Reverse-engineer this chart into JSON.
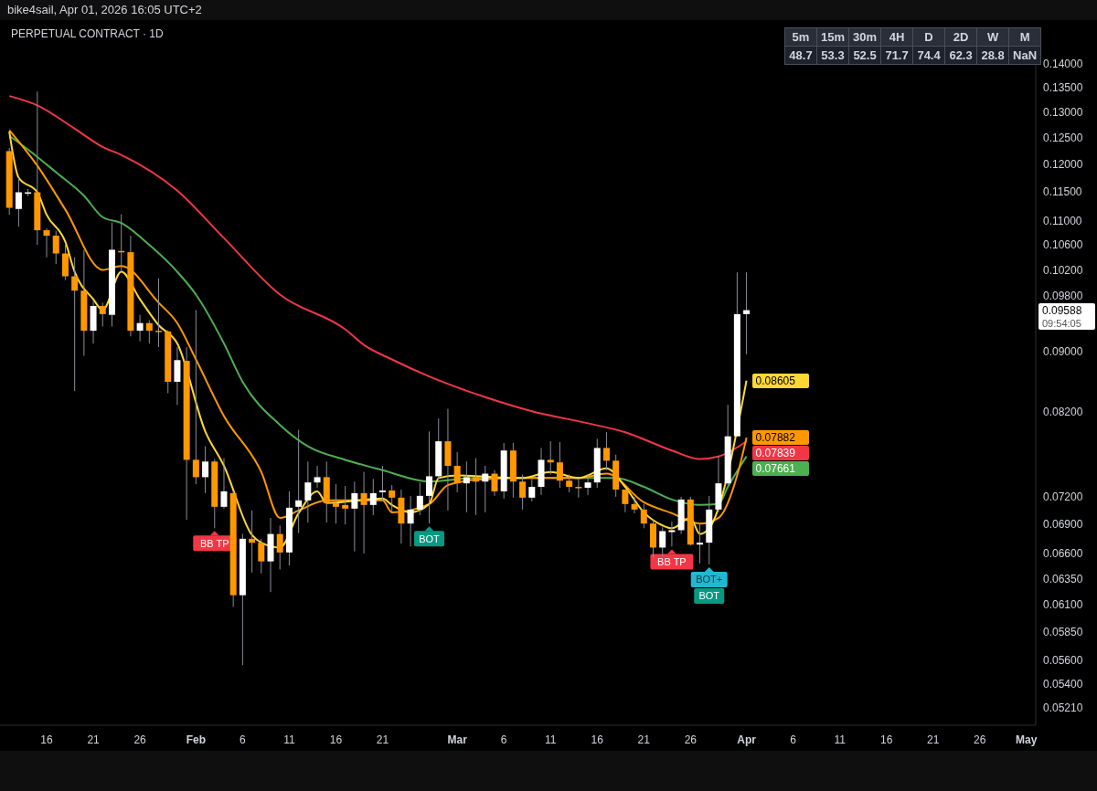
{
  "chart_data": [
    {
      "type": "candlestick",
      "title": "PERPETUAL CONTRACT · 1D",
      "subtitle": "bike4sail, Apr 01, 2026 16:05 UTC+2",
      "x": [
        "2026-01-12",
        "2026-01-13",
        "2026-01-14",
        "2026-01-15",
        "2026-01-16",
        "2026-01-17",
        "2026-01-18",
        "2026-01-19",
        "2026-01-20",
        "2026-01-21",
        "2026-01-22",
        "2026-01-23",
        "2026-01-24",
        "2026-01-25",
        "2026-01-26",
        "2026-01-27",
        "2026-01-28",
        "2026-01-29",
        "2026-01-30",
        "2026-01-31",
        "2026-02-01",
        "2026-02-02",
        "2026-02-03",
        "2026-02-04",
        "2026-02-05",
        "2026-02-06",
        "2026-02-07",
        "2026-02-08",
        "2026-02-09",
        "2026-02-10",
        "2026-02-11",
        "2026-02-12",
        "2026-02-13",
        "2026-02-14",
        "2026-02-15",
        "2026-02-16",
        "2026-02-17",
        "2026-02-18",
        "2026-02-19",
        "2026-02-20",
        "2026-02-21",
        "2026-02-22",
        "2026-02-23",
        "2026-02-24",
        "2026-02-25",
        "2026-02-26",
        "2026-02-27",
        "2026-02-28",
        "2026-03-01",
        "2026-03-02",
        "2026-03-03",
        "2026-03-04",
        "2026-03-05",
        "2026-03-06",
        "2026-03-07",
        "2026-03-08",
        "2026-03-09",
        "2026-03-10",
        "2026-03-11",
        "2026-03-12",
        "2026-03-13",
        "2026-03-14",
        "2026-03-15",
        "2026-03-16",
        "2026-03-17",
        "2026-03-18",
        "2026-03-19",
        "2026-03-20",
        "2026-03-21",
        "2026-03-22",
        "2026-03-23",
        "2026-03-24",
        "2026-03-25",
        "2026-03-26",
        "2026-03-27",
        "2026-03-28",
        "2026-03-29",
        "2026-03-30",
        "2026-03-31",
        "2026-04-01"
      ],
      "ohlc": [
        [
          0.1224,
          0.123,
          0.111,
          0.1122
        ],
        [
          0.112,
          0.1175,
          0.109,
          0.1149
        ],
        [
          0.1147,
          0.1155,
          0.1142,
          0.1149
        ],
        [
          0.1149,
          0.1341,
          0.106,
          0.1084
        ],
        [
          0.1084,
          0.1087,
          0.104,
          0.1075
        ],
        [
          0.1075,
          0.1083,
          0.1029,
          0.1046
        ],
        [
          0.1046,
          0.106,
          0.1004,
          0.101
        ],
        [
          0.101,
          0.104,
          0.0847,
          0.0988
        ],
        [
          0.0988,
          0.1052,
          0.0894,
          0.0929
        ],
        [
          0.0929,
          0.0972,
          0.0911,
          0.0965
        ],
        [
          0.0965,
          0.097,
          0.0935,
          0.0953
        ],
        [
          0.0952,
          0.1097,
          0.0935,
          0.1052
        ],
        [
          0.105,
          0.1111,
          0.1017,
          0.1048
        ],
        [
          0.1048,
          0.1075,
          0.0921,
          0.0929
        ],
        [
          0.0929,
          0.0952,
          0.0914,
          0.094
        ],
        [
          0.094,
          0.0944,
          0.0911,
          0.0929
        ],
        [
          0.0929,
          0.1007,
          0.0906,
          0.0928
        ],
        [
          0.0928,
          0.093,
          0.0844,
          0.0859
        ],
        [
          0.0859,
          0.0906,
          0.0829,
          0.0888
        ],
        [
          0.0887,
          0.0906,
          0.0695,
          0.0762
        ],
        [
          0.0762,
          0.0959,
          0.0734,
          0.0742
        ],
        [
          0.0742,
          0.0778,
          0.0724,
          0.076
        ],
        [
          0.076,
          0.0763,
          0.0686,
          0.0709
        ],
        [
          0.0709,
          0.0764,
          0.0707,
          0.0726
        ],
        [
          0.0724,
          0.0726,
          0.0608,
          0.0619
        ],
        [
          0.0619,
          0.068,
          0.0556,
          0.0675
        ],
        [
          0.0675,
          0.0705,
          0.0641,
          0.0671
        ],
        [
          0.0671,
          0.0675,
          0.064,
          0.0652
        ],
        [
          0.0652,
          0.0697,
          0.0622,
          0.068
        ],
        [
          0.068,
          0.0689,
          0.0644,
          0.0661
        ],
        [
          0.0661,
          0.0726,
          0.0648,
          0.0708
        ],
        [
          0.0709,
          0.0798,
          0.0681,
          0.0716
        ],
        [
          0.0716,
          0.076,
          0.0692,
          0.0736
        ],
        [
          0.0736,
          0.0755,
          0.073,
          0.0742
        ],
        [
          0.0742,
          0.076,
          0.0692,
          0.0713
        ],
        [
          0.0713,
          0.0734,
          0.0691,
          0.0709
        ],
        [
          0.0711,
          0.0732,
          0.069,
          0.0707
        ],
        [
          0.0707,
          0.0737,
          0.0662,
          0.0724
        ],
        [
          0.0724,
          0.0748,
          0.066,
          0.0711
        ],
        [
          0.0711,
          0.074,
          0.07,
          0.0724
        ],
        [
          0.0725,
          0.0755,
          0.0715,
          0.0727
        ],
        [
          0.0727,
          0.0733,
          0.0703,
          0.0719
        ],
        [
          0.0719,
          0.0728,
          0.067,
          0.0691
        ],
        [
          0.0691,
          0.0721,
          0.0667,
          0.0706
        ],
        [
          0.0706,
          0.0736,
          0.07,
          0.0721
        ],
        [
          0.0721,
          0.0796,
          0.0691,
          0.0743
        ],
        [
          0.0743,
          0.0812,
          0.074,
          0.0784
        ],
        [
          0.0784,
          0.0824,
          0.0705,
          0.0755
        ],
        [
          0.0755,
          0.0771,
          0.0725,
          0.0735
        ],
        [
          0.0735,
          0.076,
          0.0703,
          0.0742
        ],
        [
          0.0742,
          0.0764,
          0.07,
          0.0737
        ],
        [
          0.0737,
          0.0755,
          0.0703,
          0.0746
        ],
        [
          0.0746,
          0.075,
          0.0721,
          0.0726
        ],
        [
          0.0726,
          0.0782,
          0.0718,
          0.0773
        ],
        [
          0.0773,
          0.0782,
          0.0719,
          0.0737
        ],
        [
          0.0737,
          0.0745,
          0.0706,
          0.0719
        ],
        [
          0.0719,
          0.074,
          0.0715,
          0.0731
        ],
        [
          0.0731,
          0.0776,
          0.0722,
          0.0762
        ],
        [
          0.0762,
          0.0784,
          0.0745,
          0.0759
        ],
        [
          0.0759,
          0.0783,
          0.073,
          0.0738
        ],
        [
          0.0738,
          0.0745,
          0.0725,
          0.0731
        ],
        [
          0.0731,
          0.074,
          0.0719,
          0.073
        ],
        [
          0.073,
          0.0745,
          0.0722,
          0.0736
        ],
        [
          0.0736,
          0.0787,
          0.073,
          0.0776
        ],
        [
          0.0776,
          0.0795,
          0.075,
          0.0761
        ],
        [
          0.0761,
          0.0768,
          0.072,
          0.0728
        ],
        [
          0.0728,
          0.0728,
          0.0703,
          0.0712
        ],
        [
          0.0712,
          0.072,
          0.0702,
          0.0706
        ],
        [
          0.0706,
          0.0712,
          0.0686,
          0.0691
        ],
        [
          0.0691,
          0.0695,
          0.0656,
          0.0666
        ],
        [
          0.0666,
          0.0687,
          0.0657,
          0.0683
        ],
        [
          0.0682,
          0.0693,
          0.0667,
          0.0684
        ],
        [
          0.0684,
          0.072,
          0.068,
          0.0717
        ],
        [
          0.0717,
          0.072,
          0.0668,
          0.0669
        ],
        [
          0.0669,
          0.0691,
          0.065,
          0.0671
        ],
        [
          0.0671,
          0.0721,
          0.0649,
          0.0706
        ],
        [
          0.0706,
          0.0766,
          0.0703,
          0.0735
        ],
        [
          0.0735,
          0.0829,
          0.0733,
          0.079
        ],
        [
          0.079,
          0.1016,
          0.079,
          0.0953
        ],
        [
          0.0953,
          0.1016,
          0.0896,
          0.09588
        ]
      ],
      "colors": [
        "#ff9800",
        "#ffffff",
        "#ffffff",
        "#ff9800",
        "#ff9800",
        "#ff9800",
        "#ff9800",
        "#ff9800",
        "#ff9800",
        "#ffffff",
        "#ff9800",
        "#ffffff",
        "#ff9800",
        "#ff9800",
        "#ffffff",
        "#ff9800",
        "#ff9800",
        "#ff9800",
        "#ffffff",
        "#ff9800",
        "#ff9800",
        "#ffffff",
        "#ff9800",
        "#ffffff",
        "#ff9800",
        "#ffffff",
        "#ff9800",
        "#ff9800",
        "#ffffff",
        "#ff9800",
        "#ffffff",
        "#ffffff",
        "#ffffff",
        "#ffffff",
        "#ff9800",
        "#ff9800",
        "#ff9800",
        "#ffffff",
        "#ff9800",
        "#ffffff",
        "#ffffff",
        "#ff9800",
        "#ff9800",
        "#ffffff",
        "#ffffff",
        "#ffffff",
        "#ffffff",
        "#ff9800",
        "#ff9800",
        "#ffffff",
        "#ff9800",
        "#ffffff",
        "#ff9800",
        "#ffffff",
        "#ff9800",
        "#ff9800",
        "#ffffff",
        "#ffffff",
        "#ff9800",
        "#ff9800",
        "#ff9800",
        "#ff9800",
        "#ffffff",
        "#ffffff",
        "#ff9800",
        "#ff9800",
        "#ff9800",
        "#ff9800",
        "#ff9800",
        "#ff9800",
        "#ffffff",
        "#ffffff",
        "#ffffff",
        "#ff9800",
        "#ffffff",
        "#ffffff",
        "#ffffff",
        "#ffffff",
        "#ffffff",
        "#ffffff"
      ],
      "value_labels": [
        null,
        null,
        null,
        null,
        null,
        null,
        null,
        null,
        null,
        null,
        null,
        null,
        null,
        null,
        null,
        null,
        null,
        null,
        null,
        null,
        null,
        null,
        null,
        null,
        null,
        null,
        null,
        null,
        null,
        null,
        null,
        null,
        null,
        null,
        null,
        null,
        null,
        null,
        null,
        null,
        null,
        null,
        null,
        null,
        null,
        null,
        null,
        null,
        null,
        null,
        null,
        null,
        null,
        null,
        null,
        null,
        null,
        null,
        null,
        null,
        null,
        null,
        null,
        null,
        null,
        null,
        null,
        null,
        null,
        null,
        null,
        null,
        null,
        null,
        null,
        null,
        null,
        null,
        null,
        "0.09588"
      ],
      "series": [
        {
          "type": "line",
          "color": "#f23645",
          "x": [
            "2026-01-12",
            "2026-01-15",
            "2026-01-19",
            "2026-01-22",
            "2026-01-24",
            "2026-01-30",
            "2026-02-04",
            "2026-02-10",
            "2026-02-17",
            "2026-02-19",
            "2026-02-22",
            "2026-02-26",
            "2026-03-04",
            "2026-03-09",
            "2026-03-15",
            "2026-03-19",
            "2026-03-24",
            "2026-03-27",
            "2026-03-29",
            "2026-04-01"
          ],
          "values": [
            0.1332,
            0.1313,
            0.1267,
            0.1232,
            0.1217,
            0.1152,
            0.1071,
            0.0982,
            0.0931,
            0.0909,
            0.0889,
            0.0866,
            0.0839,
            0.0821,
            0.0806,
            0.0795,
            0.0773,
            0.0763,
            0.0766,
            0.07839
          ],
          "value_labels": [
            null,
            null,
            null,
            null,
            null,
            null,
            null,
            null,
            null,
            null,
            null,
            null,
            null,
            null,
            null,
            null,
            null,
            null,
            null,
            "0.07839"
          ]
        },
        {
          "type": "line",
          "color": "#4caf50",
          "x": [
            "2026-01-12",
            "2026-01-14",
            "2026-01-17",
            "2026-01-20",
            "2026-01-22",
            "2026-01-24",
            "2026-01-27",
            "2026-01-30",
            "2026-02-01",
            "2026-02-04",
            "2026-02-06",
            "2026-02-10",
            "2026-02-13",
            "2026-02-17",
            "2026-02-21",
            "2026-02-26",
            "2026-03-03",
            "2026-03-08",
            "2026-03-14",
            "2026-03-18",
            "2026-03-21",
            "2026-03-24",
            "2026-03-27",
            "2026-03-29",
            "2026-03-30",
            "2026-04-01"
          ],
          "values": [
            0.1253,
            0.1227,
            0.1185,
            0.1143,
            0.1106,
            0.1096,
            0.106,
            0.1017,
            0.0982,
            0.0911,
            0.0859,
            0.0804,
            0.0778,
            0.0762,
            0.075,
            0.0737,
            0.0741,
            0.0741,
            0.0741,
            0.0741,
            0.0731,
            0.0717,
            0.0711,
            0.0712,
            0.0731,
            0.07661
          ],
          "value_labels": [
            null,
            null,
            null,
            null,
            null,
            null,
            null,
            null,
            null,
            null,
            null,
            null,
            null,
            null,
            null,
            null,
            null,
            null,
            null,
            null,
            null,
            null,
            null,
            null,
            null,
            "0.07661"
          ]
        },
        {
          "type": "line",
          "color": "#ff9800",
          "x": [
            "2026-01-12",
            "2026-01-15",
            "2026-01-18",
            "2026-01-22",
            "2026-01-24",
            "2026-01-28",
            "2026-01-30",
            "2026-02-01",
            "2026-02-04",
            "2026-02-08",
            "2026-02-10",
            "2026-02-12",
            "2026-02-15",
            "2026-02-21",
            "2026-02-22",
            "2026-02-26",
            "2026-02-28",
            "2026-03-03",
            "2026-03-08",
            "2026-03-14",
            "2026-03-17",
            "2026-03-21",
            "2026-03-24",
            "2026-03-27",
            "2026-03-29",
            "2026-03-31",
            "2026-04-01"
          ],
          "values": [
            0.1264,
            0.1197,
            0.1119,
            0.102,
            0.1026,
            0.097,
            0.094,
            0.0889,
            0.0815,
            0.0748,
            0.0697,
            0.0705,
            0.0716,
            0.0716,
            0.0703,
            0.0712,
            0.0733,
            0.0739,
            0.0741,
            0.0741,
            0.0746,
            0.0714,
            0.0702,
            0.0691,
            0.0697,
            0.0744,
            0.07882
          ],
          "value_labels": [
            null,
            null,
            null,
            null,
            null,
            null,
            null,
            null,
            null,
            null,
            null,
            null,
            null,
            null,
            null,
            null,
            null,
            null,
            null,
            null,
            null,
            null,
            null,
            null,
            null,
            null,
            "0.07882"
          ]
        },
        {
          "type": "line",
          "color": "#fdd835",
          "x": [
            "2026-01-12",
            "2026-01-13",
            "2026-01-15",
            "2026-01-16",
            "2026-01-18",
            "2026-01-19",
            "2026-01-21",
            "2026-01-22",
            "2026-01-24",
            "2026-01-26",
            "2026-01-28",
            "2026-01-30",
            "2026-02-02",
            "2026-02-04",
            "2026-02-07",
            "2026-02-08",
            "2026-02-10",
            "2026-02-12",
            "2026-02-14",
            "2026-02-15",
            "2026-02-21",
            "2026-02-22",
            "2026-02-24",
            "2026-02-26",
            "2026-02-27",
            "2026-03-01",
            "2026-03-05",
            "2026-03-08",
            "2026-03-11",
            "2026-03-14",
            "2026-03-17",
            "2026-03-19",
            "2026-03-21",
            "2026-03-23",
            "2026-03-24",
            "2026-03-26",
            "2026-03-27",
            "2026-03-28",
            "2026-04-01"
          ],
          "values": [
            0.1261,
            0.1175,
            0.1149,
            0.111,
            0.1065,
            0.1017,
            0.0975,
            0.0959,
            0.1017,
            0.0975,
            0.0937,
            0.0911,
            0.0796,
            0.0755,
            0.0679,
            0.0671,
            0.0666,
            0.0702,
            0.0726,
            0.0713,
            0.0718,
            0.0711,
            0.0703,
            0.0712,
            0.0741,
            0.0744,
            0.0742,
            0.0741,
            0.0748,
            0.0741,
            0.0752,
            0.0731,
            0.0703,
            0.0689,
            0.0686,
            0.0697,
            0.068,
            0.0686,
            0.08605
          ],
          "value_labels": [
            null,
            null,
            null,
            null,
            null,
            null,
            null,
            null,
            null,
            null,
            null,
            null,
            null,
            null,
            null,
            null,
            null,
            null,
            null,
            null,
            null,
            null,
            null,
            null,
            null,
            null,
            null,
            null,
            null,
            null,
            null,
            null,
            null,
            null,
            null,
            null,
            null,
            null,
            "0.08605"
          ]
        }
      ],
      "annotations": [
        {
          "text": "BB TP",
          "x": "2026-02-03",
          "y": 0.0686
        },
        {
          "text": "BOT",
          "x": "2026-02-26",
          "y": 0.0691
        },
        {
          "text": "BB TP",
          "x": "2026-03-24",
          "y": 0.0667
        },
        {
          "text": "BOT+",
          "x": "2026-03-28",
          "y": 0.0649
        },
        {
          "text": "BOT",
          "x": "2026-03-28",
          "y": 0.0649
        },
        "09:54:05"
      ],
      "log": "y",
      "ylim": [
        0.0507,
        0.148
      ],
      "yticks": [
        {
          "value": 0.14,
          "label": "0.14000"
        },
        {
          "value": 0.135,
          "label": "0.13500"
        },
        {
          "value": 0.13,
          "label": "0.13000"
        },
        {
          "value": 0.125,
          "label": "0.12500"
        },
        {
          "value": 0.12,
          "label": "0.12000"
        },
        {
          "value": 0.115,
          "label": "0.11500"
        },
        {
          "value": 0.11,
          "label": "0.11000"
        },
        {
          "value": 0.106,
          "label": "0.10600"
        },
        {
          "value": 0.102,
          "label": "0.10200"
        },
        {
          "value": 0.098,
          "label": "0.09800"
        },
        {
          "value": 0.09,
          "label": "0.09000"
        },
        {
          "value": 0.082,
          "label": "0.08200"
        },
        {
          "value": 0.072,
          "label": "0.07200"
        },
        {
          "value": 0.069,
          "label": "0.06900"
        },
        {
          "value": 0.066,
          "label": "0.06600"
        },
        {
          "value": 0.0635,
          "label": "0.06350"
        },
        {
          "value": 0.061,
          "label": "0.06100"
        },
        {
          "value": 0.0585,
          "label": "0.05850"
        },
        {
          "value": 0.056,
          "label": "0.05600"
        },
        {
          "value": 0.054,
          "label": "0.05400"
        },
        {
          "value": 0.0521,
          "label": "0.05210"
        }
      ],
      "xlim": [
        "2026-01-11",
        "2026-05-02"
      ],
      "xticks": [
        {
          "value": "2026-01-16",
          "label": "16"
        },
        {
          "value": "2026-01-21",
          "label": "21"
        },
        {
          "value": "2026-01-26",
          "label": "26"
        },
        {
          "value": "2026-02-01",
          "label": "Feb"
        },
        {
          "value": "2026-02-06",
          "label": "6"
        },
        {
          "value": "2026-02-11",
          "label": "11"
        },
        {
          "value": "2026-02-16",
          "label": "16"
        },
        {
          "value": "2026-02-21",
          "label": "21"
        },
        {
          "value": "2026-03-01",
          "label": "Mar"
        },
        {
          "value": "2026-03-06",
          "label": "6"
        },
        {
          "value": "2026-03-11",
          "label": "11"
        },
        {
          "value": "2026-03-16",
          "label": "16"
        },
        {
          "value": "2026-03-21",
          "label": "21"
        },
        {
          "value": "2026-03-26",
          "label": "26"
        },
        {
          "value": "2026-04-01",
          "label": "Apr"
        },
        {
          "value": "2026-04-06",
          "label": "6"
        },
        {
          "value": "2026-04-11",
          "label": "11"
        },
        {
          "value": "2026-04-16",
          "label": "16"
        },
        {
          "value": "2026-04-21",
          "label": "21"
        },
        {
          "value": "2026-04-26",
          "label": "26"
        },
        {
          "value": "2026-05-01",
          "label": "May"
        }
      ]
    },
    {
      "type": "other",
      "categories": [
        "5m",
        "15m",
        "30m",
        "4H",
        "D",
        "2D",
        "W",
        "M"
      ],
      "annotations": [
        "48.7",
        "53.3",
        "52.5",
        "71.7",
        "74.4",
        "62.3",
        "28.8",
        "NaN"
      ]
    }
  ]
}
